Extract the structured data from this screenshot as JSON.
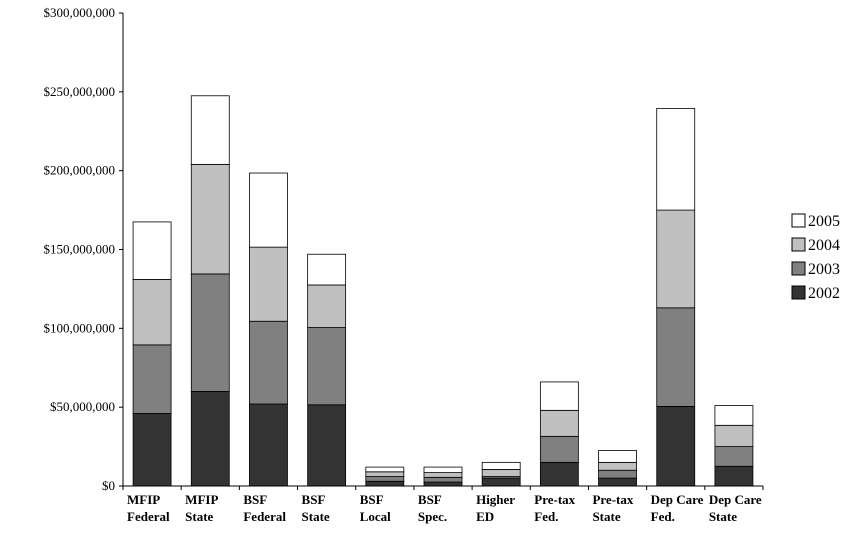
{
  "chart_data": {
    "type": "bar",
    "stacked": true,
    "categories": [
      [
        "MFIP",
        "Federal"
      ],
      [
        "MFIP",
        "State"
      ],
      [
        "BSF",
        "Federal"
      ],
      [
        "BSF",
        "State"
      ],
      [
        "BSF",
        "Local"
      ],
      [
        "BSF",
        "Spec."
      ],
      [
        "Higher",
        "ED"
      ],
      [
        "Pre-tax",
        "Fed."
      ],
      [
        "Pre-tax",
        "State"
      ],
      [
        "Dep Care",
        "Fed."
      ],
      [
        "Dep Care",
        "State"
      ]
    ],
    "series": [
      {
        "name": "2002",
        "color": "#333333",
        "values": [
          46000000,
          60000000,
          52000000,
          51500000,
          3000000,
          2500000,
          5000000,
          15000000,
          5000000,
          50500000,
          12500000
        ]
      },
      {
        "name": "2003",
        "color": "#808080",
        "values": [
          43500000,
          74500000,
          52500000,
          49000000,
          3000000,
          3000000,
          1000000,
          16500000,
          5000000,
          62500000,
          12500000
        ]
      },
      {
        "name": "2004",
        "color": "#c0c0c0",
        "values": [
          41500000,
          69500000,
          47000000,
          27000000,
          3000000,
          3000000,
          4500000,
          16500000,
          5000000,
          62000000,
          13500000
        ]
      },
      {
        "name": "2005",
        "color": "#ffffff",
        "values": [
          36500000,
          43500000,
          47000000,
          19500000,
          3000000,
          3500000,
          4500000,
          18000000,
          7500000,
          64500000,
          12500000
        ]
      }
    ],
    "ylim": [
      0,
      300000000
    ],
    "yticks": [
      0,
      50000000,
      100000000,
      150000000,
      200000000,
      250000000,
      300000000
    ],
    "ytick_labels": [
      "$0",
      "$50,000,000",
      "$100,000,000",
      "$150,000,000",
      "$200,000,000",
      "$250,000,000",
      "$300,000,000"
    ],
    "legend": {
      "placement": "right",
      "order": [
        "2005",
        "2004",
        "2003",
        "2002"
      ]
    },
    "grid": false
  }
}
